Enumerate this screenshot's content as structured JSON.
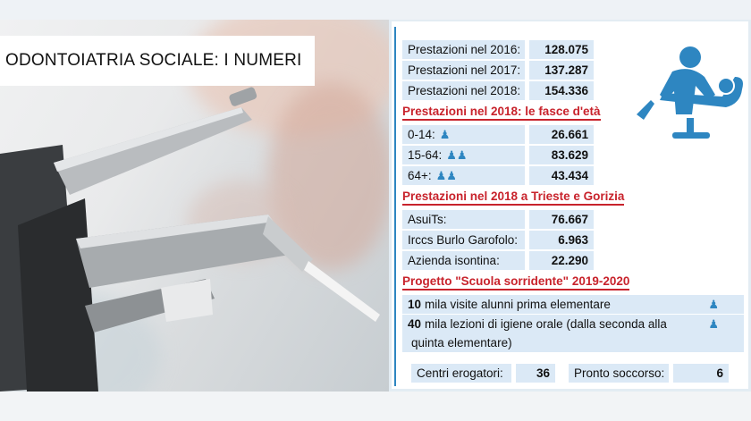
{
  "headline": "ODONTOIATRIA SOCIALE: I NUMERI",
  "prestazioni_anni": [
    {
      "label": "Prestazioni nel 2016:",
      "value": "128.075"
    },
    {
      "label": "Prestazioni nel 2017:",
      "value": "137.287"
    },
    {
      "label": "Prestazioni nel 2018:",
      "value": "154.336"
    }
  ],
  "sec_fasce": "Prestazioni nel 2018: le fasce d'età",
  "fasce": [
    {
      "label": "0-14:",
      "value": "26.661",
      "icon": "child-icon"
    },
    {
      "label": "15-64:",
      "value": "83.629",
      "icon": "adults-icon"
    },
    {
      "label": "64+:",
      "value": "43.434",
      "icon": "elderly-icon"
    }
  ],
  "sec_territorio": "Prestazioni nel 2018 a Trieste e Gorizia",
  "territorio": [
    {
      "label": "AsuiTs:",
      "value": "76.667"
    },
    {
      "label": "Irccs Burlo Garofolo:",
      "value": "6.963"
    },
    {
      "label": "Azienda isontina:",
      "value": "22.290"
    }
  ],
  "sec_progetto": "Progetto \"Scuola sorridente\" 2019-2020",
  "progetto": [
    {
      "num": "10",
      "text": "mila visite alunni prima elementare"
    },
    {
      "num": "40",
      "text": "mila lezioni di igiene orale (dalla seconda alla",
      "text2": "quinta elementare)"
    }
  ],
  "footer": {
    "centri_label": "Centri erogatori:",
    "centri_value": "36",
    "pronto_label": "Pronto soccorso:",
    "pronto_value": "6"
  },
  "colors": {
    "accent_blue": "#2e86c1",
    "section_red": "#c8232c",
    "row_fill": "#dbe9f6"
  }
}
